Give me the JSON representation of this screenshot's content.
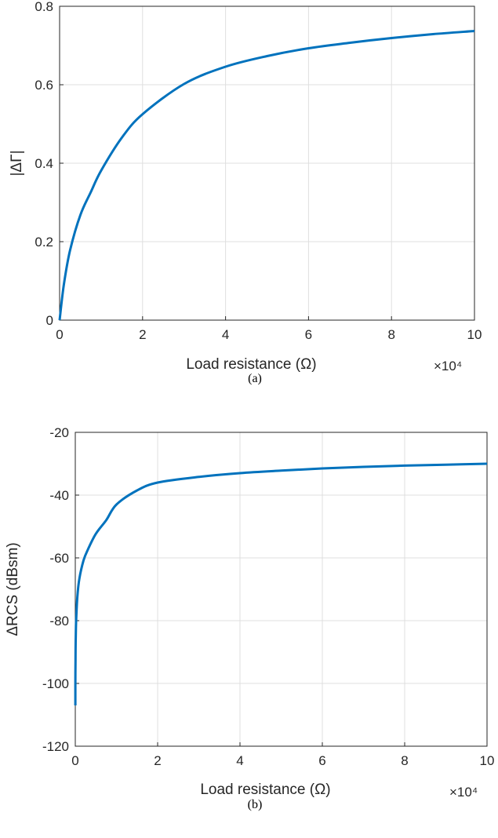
{
  "chart_data": [
    {
      "type": "line",
      "panel_label": "(a)",
      "xlabel": "Load resistance (Ω)",
      "ylabel": "|ΔΓ|",
      "x_multiplier": "×10⁴",
      "xlim": [
        0,
        10
      ],
      "ylim": [
        0,
        0.8
      ],
      "xticks": [
        "0",
        "2",
        "4",
        "6",
        "8",
        "10"
      ],
      "yticks": [
        "0",
        "0.2",
        "0.4",
        "0.6",
        "0.8"
      ],
      "grid": true,
      "color": "#0072BD",
      "series": [
        {
          "x": [
            0,
            0.1,
            0.25,
            0.5,
            0.75,
            1,
            1.5,
            2,
            3,
            4,
            5,
            6,
            7,
            8,
            9,
            10
          ],
          "y": [
            0,
            0.089,
            0.177,
            0.268,
            0.326,
            0.381,
            0.465,
            0.525,
            0.602,
            0.646,
            0.673,
            0.693,
            0.707,
            0.719,
            0.729,
            0.737
          ]
        }
      ]
    },
    {
      "type": "line",
      "panel_label": "(b)",
      "xlabel": "Load resistance (Ω)",
      "ylabel": "ΔRCS (dBsm)",
      "x_multiplier": "×10⁴",
      "xlim": [
        0,
        10
      ],
      "ylim": [
        -120,
        -20
      ],
      "xticks": [
        "0",
        "2",
        "4",
        "6",
        "8",
        "10"
      ],
      "yticks": [
        "-120",
        "-100",
        "-80",
        "-60",
        "-40",
        "-20"
      ],
      "grid": true,
      "color": "#0072BD",
      "series": [
        {
          "x": [
            0.001,
            0.002,
            0.005,
            0.01,
            0.02,
            0.05,
            0.1,
            0.2,
            0.3,
            0.5,
            0.75,
            1,
            1.5,
            2,
            3,
            4,
            5,
            6,
            7,
            8,
            9,
            10
          ],
          "y": [
            -107,
            -100.5,
            -92.5,
            -86.5,
            -80.5,
            -72.5,
            -66.5,
            -60.8,
            -57.5,
            -52.3,
            -48,
            -43,
            -38.5,
            -36,
            -34.2,
            -33,
            -32.2,
            -31.5,
            -31,
            -30.6,
            -30.3,
            -30
          ]
        }
      ]
    }
  ]
}
